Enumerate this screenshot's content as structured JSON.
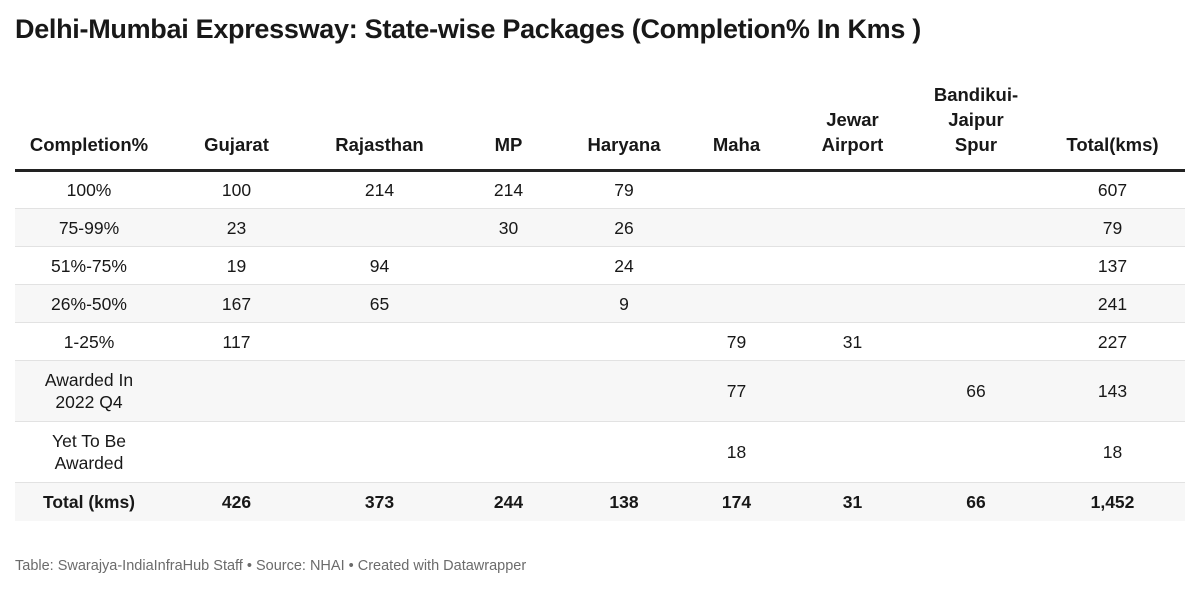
{
  "title": "Delhi-Mumbai Expressway: State-wise Packages (Completion% In Kms )",
  "footer": "Table: Swarajya-IndiaInfraHub Staff • Source: NHAI • Created with Datawrapper",
  "chart_data": {
    "type": "table",
    "title": "Delhi-Mumbai Expressway: State-wise Packages (Completion% In Kms )",
    "columns": [
      "Completion%",
      "Gujarat",
      "Rajasthan",
      "MP",
      "Haryana",
      "Maha",
      "Jewar Airport",
      "Bandikui-Jaipur Spur",
      "Total(kms)"
    ],
    "rows": [
      [
        "100%",
        "100",
        "214",
        "214",
        "79",
        "",
        "",
        "",
        "607"
      ],
      [
        "75-99%",
        "23",
        "",
        "30",
        "26",
        "",
        "",
        "",
        "79"
      ],
      [
        "51%-75%",
        "19",
        "94",
        "",
        "24",
        "",
        "",
        "",
        "137"
      ],
      [
        "26%-50%",
        "167",
        "65",
        "",
        "9",
        "",
        "",
        "",
        "241"
      ],
      [
        "1-25%",
        "117",
        "",
        "",
        "",
        "79",
        "31",
        "",
        "227"
      ],
      [
        "Awarded In 2022 Q4",
        "",
        "",
        "",
        "",
        "77",
        "",
        "66",
        "143"
      ],
      [
        "Yet To Be Awarded",
        "",
        "",
        "",
        "",
        "18",
        "",
        "",
        "18"
      ],
      [
        "Total (kms)",
        "426",
        "373",
        "244",
        "138",
        "174",
        "31",
        "66",
        "1,452"
      ]
    ],
    "striped": true,
    "colors": {
      "header_rule": "#222222",
      "stripe": "#f7f7f7",
      "row_rule": "#e2e2e2",
      "footer_text": "#6b6b6b"
    }
  }
}
